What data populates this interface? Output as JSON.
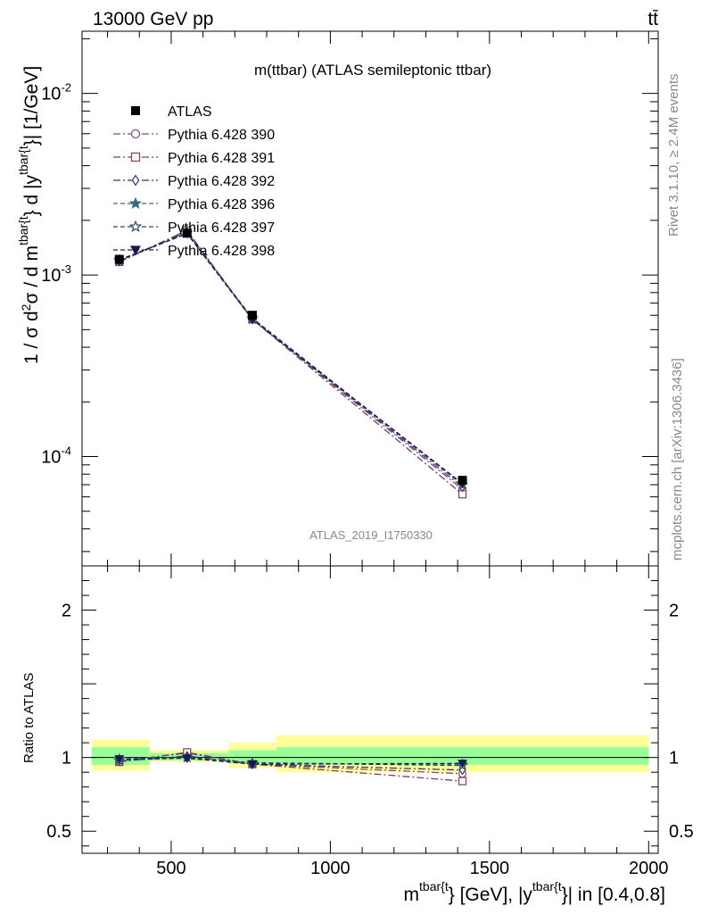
{
  "header": {
    "left": "13000 GeV pp",
    "right": "tt̄"
  },
  "side_labels": {
    "rivet": "Rivet 3.1.10, ≥ 2.4M events",
    "mcplots": "mcplots.cern.ch [arXiv:1306.3436]"
  },
  "chart_data": [
    {
      "type": "line",
      "panel": "main",
      "title": "m(ttbar) (ATLAS semileptonic ttbar)",
      "ylabel": {
        "pre": "1 / σ d",
        "sup2": "2",
        "mid": "σ / d m",
        "sup_a": "tbar{t",
        "mid2": "} d |y",
        "sup_b": "tbar{t",
        "post": "}| [1/GeV]"
      },
      "yscale": "log",
      "ylim": [
        2.5e-05,
        0.022
      ],
      "xlim": [
        220,
        2030
      ],
      "yticks": [
        {
          "value": 0.01,
          "base": "10",
          "exp": "-2"
        },
        {
          "value": 0.001,
          "base": "10",
          "exp": "-3"
        },
        {
          "value": 0.0001,
          "base": "10",
          "exp": "-4"
        }
      ],
      "watermark": "ATLAS_2019_I1750330",
      "data": {
        "name": "ATLAS",
        "x": [
          337,
          550,
          755,
          1415
        ],
        "y": [
          0.00122,
          0.0017,
          0.0006,
          7.4e-05
        ]
      },
      "series": [
        {
          "name": "Pythia 6.428 390",
          "marker": "circle-open",
          "color": "#7a4a7a",
          "dash": "8,3,2,3",
          "y": [
            0.00119,
            0.00175,
            0.00057,
            6.6e-05
          ]
        },
        {
          "name": "Pythia 6.428 391",
          "marker": "square-open",
          "color": "#7a4050",
          "dash": "8,3,2,3",
          "y": [
            0.00118,
            0.00176,
            0.00057,
            6.2e-05
          ]
        },
        {
          "name": "Pythia 6.428 392",
          "marker": "diamond-open",
          "color": "#4a2a7a",
          "dash": "8,3,2,3",
          "y": [
            0.00119,
            0.00172,
            0.00057,
            6.8e-05
          ]
        },
        {
          "name": "Pythia 6.428 396",
          "marker": "star-filled",
          "color": "#3a6a7a",
          "dash": "5,3",
          "y": [
            0.00121,
            0.0017,
            0.00057,
            7e-05
          ]
        },
        {
          "name": "Pythia 6.428 397",
          "marker": "star-open",
          "color": "#2a4a6a",
          "dash": "5,3",
          "y": [
            0.0012,
            0.0017,
            0.00058,
            7e-05
          ]
        },
        {
          "name": "Pythia 6.428 398",
          "marker": "triangle-down-filled",
          "color": "#1a1a4a",
          "dash": "5,3",
          "y": [
            0.00121,
            0.00169,
            0.00057,
            7.1e-05
          ]
        }
      ]
    },
    {
      "type": "line",
      "panel": "ratio",
      "ylabel": "Ratio to ATLAS",
      "ylim": [
        0.35,
        2.3
      ],
      "xlim": [
        220,
        2030
      ],
      "yticks": [
        {
          "value": 0.5,
          "label": "0.5"
        },
        {
          "value": 1,
          "label": "1"
        },
        {
          "value": 2,
          "label": "2"
        }
      ],
      "xticks": [
        {
          "value": 500,
          "label": "500"
        },
        {
          "value": 1000,
          "label": "1000"
        },
        {
          "value": 1500,
          "label": "1500"
        },
        {
          "value": 2000,
          "label": "2000"
        }
      ],
      "xlabel": {
        "pre": "m",
        "sup_a": "tbar{t",
        "mid": "} [GeV], |y",
        "sup_b": "tbar{t",
        "post": "}| in [0.4,0.8]"
      },
      "bands": [
        {
          "x0": 250,
          "x1": 432,
          "yellow": [
            0.91,
            1.12
          ],
          "green": [
            0.95,
            1.07
          ]
        },
        {
          "x0": 432,
          "x1": 680,
          "yellow": [
            0.97,
            1.05
          ],
          "green": [
            0.98,
            1.03
          ]
        },
        {
          "x0": 680,
          "x1": 830,
          "yellow": [
            0.93,
            1.1
          ],
          "green": [
            0.96,
            1.05
          ]
        },
        {
          "x0": 830,
          "x1": 2000,
          "yellow": [
            0.9,
            1.15
          ],
          "green": [
            0.95,
            1.07
          ]
        }
      ],
      "series": [
        {
          "name": "Pythia 6.428 390",
          "y": [
            0.975,
            1.03,
            0.955,
            0.89
          ]
        },
        {
          "name": "Pythia 6.428 391",
          "y": [
            0.97,
            1.035,
            0.955,
            0.84
          ]
        },
        {
          "name": "Pythia 6.428 392",
          "y": [
            0.975,
            1.01,
            0.955,
            0.915
          ]
        },
        {
          "name": "Pythia 6.428 396",
          "y": [
            0.99,
            1.0,
            0.96,
            0.955
          ]
        },
        {
          "name": "Pythia 6.428 397",
          "y": [
            0.98,
            1.0,
            0.965,
            0.945
          ]
        },
        {
          "name": "Pythia 6.428 398",
          "y": [
            0.99,
            0.995,
            0.955,
            0.96
          ]
        }
      ]
    }
  ]
}
